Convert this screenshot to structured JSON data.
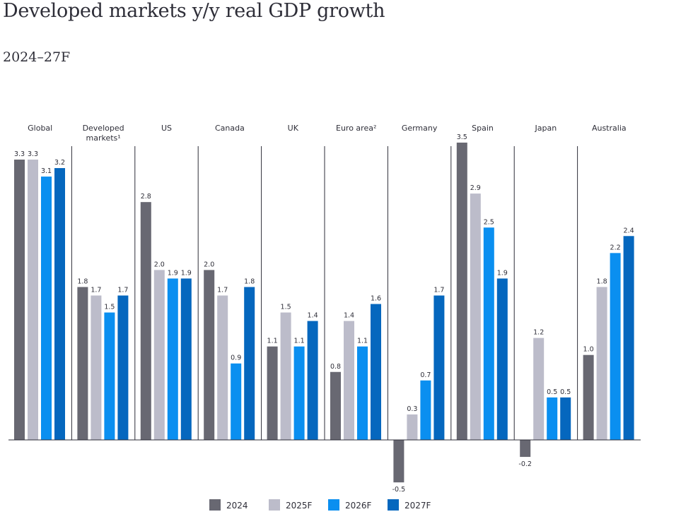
{
  "chart_data": {
    "type": "bar",
    "title": "Developed markets y/y real GDP growth",
    "subtitle": "2024–27F",
    "categories": [
      "Global",
      "Developed markets¹",
      "US",
      "Canada",
      "UK",
      "Euro area²",
      "Germany",
      "Spain",
      "Japan",
      "Australia"
    ],
    "series": [
      {
        "name": "2024",
        "color": "#686872",
        "values": [
          3.3,
          1.8,
          2.8,
          2.0,
          1.1,
          0.8,
          -0.5,
          3.5,
          -0.2,
          1.0
        ]
      },
      {
        "name": "2025F",
        "color": "#bcbcca",
        "values": [
          3.3,
          1.7,
          2.0,
          1.7,
          1.5,
          1.4,
          0.3,
          2.9,
          1.2,
          1.8
        ]
      },
      {
        "name": "2026F",
        "color": "#0a8ff0",
        "values": [
          3.1,
          1.5,
          1.9,
          0.9,
          1.1,
          1.1,
          0.7,
          2.5,
          0.5,
          2.2
        ]
      },
      {
        "name": "2027F",
        "color": "#0567be",
        "values": [
          3.2,
          1.7,
          1.9,
          1.8,
          1.4,
          1.6,
          1.7,
          1.9,
          0.5,
          2.4
        ]
      }
    ],
    "data_labels": true,
    "grid": false,
    "legend_position": "bottom",
    "xlabel": "",
    "ylabel": ""
  }
}
